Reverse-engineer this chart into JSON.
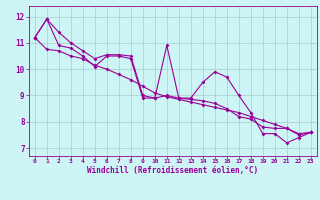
{
  "x": [
    0,
    1,
    2,
    3,
    4,
    5,
    6,
    7,
    8,
    9,
    10,
    11,
    12,
    13,
    14,
    15,
    16,
    17,
    18,
    19,
    20,
    21,
    22,
    23
  ],
  "y_main": [
    11.2,
    11.9,
    10.9,
    10.8,
    10.5,
    10.1,
    10.5,
    10.5,
    10.4,
    8.9,
    8.9,
    10.9,
    8.9,
    8.9,
    9.5,
    9.9,
    9.7,
    9.0,
    8.35,
    7.55,
    7.55,
    7.2,
    7.4,
    7.6
  ],
  "y_linear1": [
    11.2,
    11.9,
    11.4,
    11.0,
    10.7,
    10.4,
    10.55,
    10.55,
    10.5,
    9.0,
    8.9,
    9.0,
    8.9,
    8.85,
    8.8,
    8.7,
    8.5,
    8.2,
    8.1,
    7.8,
    7.75,
    7.75,
    7.5,
    7.6
  ],
  "y_linear2": [
    11.2,
    10.75,
    10.7,
    10.5,
    10.4,
    10.15,
    10.0,
    9.8,
    9.6,
    9.35,
    9.1,
    8.95,
    8.85,
    8.75,
    8.65,
    8.55,
    8.45,
    8.35,
    8.2,
    8.05,
    7.9,
    7.75,
    7.55,
    7.6
  ],
  "bg_color": "#cef5f5",
  "line_color": "#990099",
  "grid_color": "#aacccc",
  "xlabel": "Windchill (Refroidissement éolien,°C)",
  "tick_color": "#990099",
  "ylabel_ticks": [
    7,
    8,
    9,
    10,
    11,
    12
  ],
  "xlim": [
    -0.5,
    23.5
  ],
  "ylim": [
    6.7,
    12.4
  ]
}
